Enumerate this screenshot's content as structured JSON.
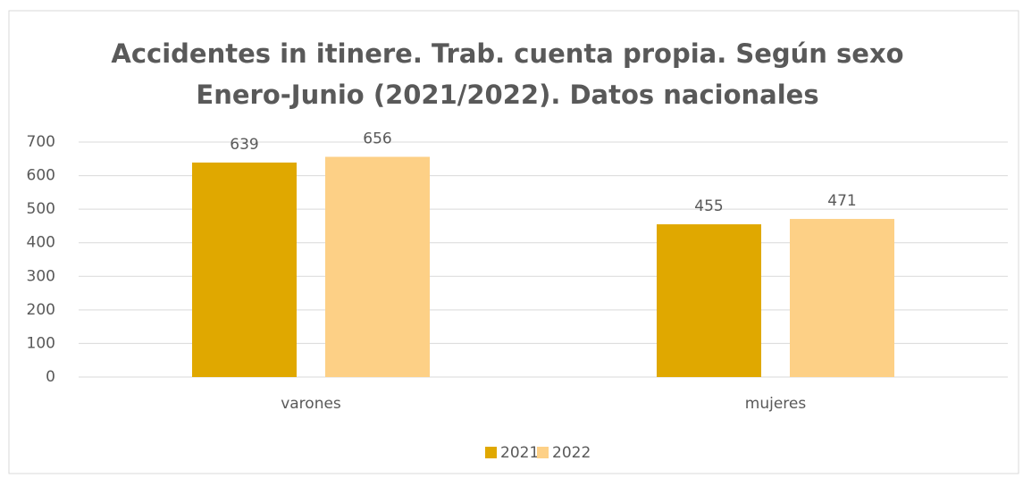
{
  "chart_data": {
    "type": "bar",
    "title": "Accidentes in itinere. Trab. cuenta propia. Según sexo",
    "subtitle": "Enero-Junio (2021/2022). Datos nacionales",
    "categories": [
      "varones",
      "mujeres"
    ],
    "series": [
      {
        "name": "2021",
        "color": "#e0a800",
        "values": [
          639,
          455
        ]
      },
      {
        "name": "2022",
        "color": "#fdd086",
        "values": [
          656,
          471
        ]
      }
    ],
    "ylim": [
      0,
      700
    ],
    "yticks": [
      0,
      100,
      200,
      300,
      400,
      500,
      600,
      700
    ],
    "grid": true,
    "legend": "bottom"
  }
}
